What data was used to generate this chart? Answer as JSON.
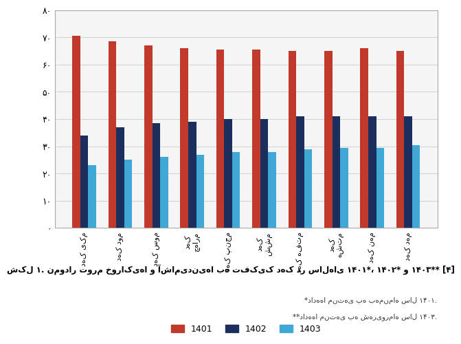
{
  "categories_display": [
    "دهک یکم",
    "دهک دوم",
    "دهک سوم",
    "دهک\nچهارم",
    "دهک پنجم",
    "دهک\nششم",
    "دهک هفتم",
    "دهک\nهشتم",
    "دهک نهم",
    "دهک دهم"
  ],
  "values_1401": [
    70.5,
    68.5,
    67,
    66,
    65.5,
    65.5,
    65,
    65,
    66,
    65
  ],
  "values_1402": [
    34,
    37,
    38.5,
    39,
    40,
    40,
    41,
    41,
    41,
    41
  ],
  "values_1403": [
    23,
    25,
    26,
    27,
    28,
    28,
    29,
    29.5,
    29.5,
    30.5
  ],
  "color_1401": "#c0392b",
  "color_1402": "#1b2f5e",
  "color_1403": "#3fa8d5",
  "legend_1401": "1401",
  "legend_1402": "1402",
  "legend_1403": "1403",
  "ylim": [
    0,
    80
  ],
  "yticks": [
    0,
    10,
    20,
    30,
    40,
    50,
    60,
    70,
    80
  ],
  "ytick_labels": [
    "۰",
    "۱۰",
    "۲۰",
    "۳۰",
    "۴۰",
    "۵۰",
    "۶۰",
    "۷۰",
    "۸۰"
  ],
  "caption": "شکل ۱. نمودار تورم خوراکی‌ها و آشامیدنی‌ها به تفکیک دهک در سال‌های ۱۴۰۱*، ۱۴۰۲* و ۱۴۰۳** [۴]",
  "footnote1": "*داده‌ها منتهی به بهمن‌ماه سال ۱۴۰۱.",
  "footnote2": "**داده‌ها منتهی به شهریورماه سال ۱۴۰۳.",
  "background_color": "#ffffff",
  "plot_bg": "#f5f5f5",
  "border_color": "#aaaaaa"
}
